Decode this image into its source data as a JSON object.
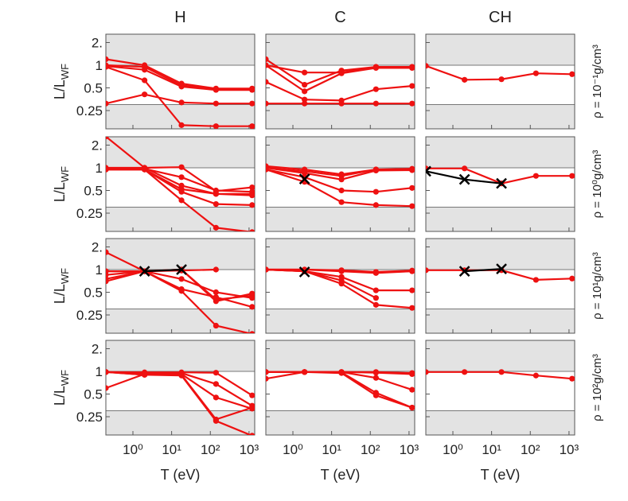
{
  "columns": [
    "H",
    "C",
    "CH"
  ],
  "row_labels": [
    "ρ = 10⁻¹g/cm³",
    "ρ = 10⁰g/cm³",
    "ρ = 10¹g/cm³",
    "ρ = 10²g/cm³"
  ],
  "y_label": "L/L",
  "y_label_sub": "WF",
  "x_label": "T (eV)",
  "axes": {
    "log_x": true,
    "log_y": true,
    "x": [
      0.2,
      2,
      18,
      140,
      1200
    ],
    "xlim": [
      0.2,
      1400
    ],
    "ylim": [
      0.143,
      2.58
    ],
    "xticks": [
      {
        "value": 1,
        "label": "10⁰"
      },
      {
        "value": 10,
        "label": "10¹"
      },
      {
        "value": 100,
        "label": "10²"
      },
      {
        "value": 1000,
        "label": "10³"
      }
    ],
    "yticks": [
      0.25,
      0.5,
      1,
      {
        "value": 2,
        "label": "2."
      }
    ],
    "shade_above": 1,
    "shade_below": 0.3
  },
  "chart_data": [
    {
      "type": "line",
      "series": [
        {
          "color": "#ee1111",
          "marker": "dot",
          "values": [
            1.2,
            1.0,
            0.57,
            0.49,
            0.49
          ]
        },
        {
          "color": "#ee1111",
          "marker": "dot",
          "values": [
            1.0,
            0.95,
            0.54,
            0.48,
            0.48
          ]
        },
        {
          "color": "#ee1111",
          "marker": "dot",
          "values": [
            0.97,
            0.87,
            0.52,
            0.47,
            0.47
          ]
        },
        {
          "color": "#ee1111",
          "marker": "dot",
          "values": [
            0.95,
            0.63,
            0.16,
            0.155,
            0.155
          ]
        },
        {
          "color": "#ee1111",
          "marker": "dot",
          "values": [
            0.31,
            0.41,
            0.32,
            0.31,
            0.31
          ]
        }
      ]
    },
    {
      "type": "line",
      "series": [
        {
          "color": "#ee1111",
          "marker": "dot",
          "values": [
            1.2,
            0.55,
            0.85,
            0.95,
            0.95
          ]
        },
        {
          "color": "#ee1111",
          "marker": "dot",
          "values": [
            1.0,
            0.8,
            0.8,
            0.95,
            0.95
          ]
        },
        {
          "color": "#ee1111",
          "marker": "dot",
          "values": [
            1.0,
            0.45,
            0.78,
            0.92,
            0.92
          ]
        },
        {
          "color": "#ee1111",
          "marker": "dot",
          "values": [
            0.6,
            0.35,
            0.34,
            0.48,
            0.53
          ]
        },
        {
          "color": "#ee1111",
          "marker": "dot",
          "values": [
            0.31,
            0.31,
            0.31,
            0.31,
            0.31
          ]
        }
      ]
    },
    {
      "type": "line",
      "series": [
        {
          "color": "#ee1111",
          "marker": "dot",
          "values": [
            0.98,
            0.64,
            0.65,
            0.78,
            0.76
          ]
        }
      ]
    },
    {
      "type": "line",
      "series": [
        {
          "color": "#ee1111",
          "marker": "dot",
          "values": [
            2.6,
            1.0,
            0.58,
            0.45,
            0.45
          ]
        },
        {
          "color": "#ee1111",
          "marker": "dot",
          "values": [
            1.0,
            1.0,
            1.02,
            0.49,
            0.55
          ]
        },
        {
          "color": "#ee1111",
          "marker": "dot",
          "values": [
            0.97,
            0.97,
            0.75,
            0.5,
            0.48
          ]
        },
        {
          "color": "#ee1111",
          "marker": "dot",
          "values": [
            0.95,
            0.95,
            0.52,
            0.45,
            0.43
          ]
        },
        {
          "color": "#ee1111",
          "marker": "dot",
          "values": [
            0.95,
            0.95,
            0.48,
            0.33,
            0.32
          ]
        },
        {
          "color": "#ee1111",
          "marker": "dot",
          "values": [
            0.95,
            0.95,
            0.37,
            0.16,
            0.14
          ]
        }
      ]
    },
    {
      "type": "line",
      "series": [
        {
          "color": "#ee1111",
          "marker": "dot",
          "values": [
            1.05,
            0.95,
            0.82,
            0.95,
            0.97
          ]
        },
        {
          "color": "#ee1111",
          "marker": "dot",
          "values": [
            1.0,
            0.9,
            0.78,
            0.95,
            0.95
          ]
        },
        {
          "color": "#ee1111",
          "marker": "dot",
          "values": [
            1.0,
            0.85,
            0.7,
            0.92,
            0.93
          ]
        },
        {
          "color": "#ee1111",
          "marker": "dot",
          "values": [
            0.95,
            0.75,
            0.5,
            0.48,
            0.54
          ]
        },
        {
          "color": "#ee1111",
          "marker": "dot",
          "values": [
            0.95,
            0.65,
            0.35,
            0.32,
            0.31
          ]
        },
        {
          "color": "#000000",
          "marker": "cross",
          "values": [
            null,
            0.71,
            null,
            null,
            null
          ]
        }
      ]
    },
    {
      "type": "line",
      "series": [
        {
          "color": "#ee1111",
          "marker": "dot",
          "values": [
            0.98,
            0.98,
            0.62,
            0.78,
            0.78
          ]
        },
        {
          "color": "#000000",
          "marker": "cross",
          "values": [
            0.9,
            0.7,
            0.62,
            null,
            null
          ]
        }
      ]
    },
    {
      "type": "line",
      "series": [
        {
          "color": "#ee1111",
          "marker": "dot",
          "values": [
            1.7,
            0.95,
            1.0,
            0.4,
            0.45
          ]
        },
        {
          "color": "#ee1111",
          "marker": "dot",
          "values": [
            0.95,
            0.95,
            0.97,
            1.0,
            null
          ]
        },
        {
          "color": "#ee1111",
          "marker": "dot",
          "values": [
            0.95,
            0.95,
            1.0,
            0.38,
            0.48
          ]
        },
        {
          "color": "#ee1111",
          "marker": "dot",
          "values": [
            0.85,
            0.95,
            0.75,
            0.5,
            0.42
          ]
        },
        {
          "color": "#ee1111",
          "marker": "dot",
          "values": [
            0.75,
            0.95,
            0.55,
            0.43,
            0.32
          ]
        },
        {
          "color": "#ee1111",
          "marker": "dot",
          "values": [
            0.7,
            0.95,
            0.52,
            0.18,
            0.14
          ]
        },
        {
          "color": "#000000",
          "marker": "cross",
          "values": [
            null,
            0.95,
            1.0,
            null,
            null
          ]
        }
      ]
    },
    {
      "type": "line",
      "series": [
        {
          "color": "#ee1111",
          "marker": "dot",
          "values": [
            1.0,
            1.0,
            0.98,
            0.93,
            0.97
          ]
        },
        {
          "color": "#ee1111",
          "marker": "dot",
          "values": [
            1.0,
            1.0,
            0.95,
            0.9,
            0.95
          ]
        },
        {
          "color": "#ee1111",
          "marker": "dot",
          "values": [
            1.0,
            0.95,
            0.8,
            0.53,
            0.53
          ]
        },
        {
          "color": "#ee1111",
          "marker": "dot",
          "values": [
            1.0,
            0.95,
            0.72,
            0.42,
            null
          ]
        },
        {
          "color": "#ee1111",
          "marker": "dot",
          "values": [
            1.0,
            0.95,
            0.65,
            0.34,
            0.31
          ]
        },
        {
          "color": "#000000",
          "marker": "cross",
          "values": [
            null,
            0.93,
            null,
            null,
            null
          ]
        }
      ]
    },
    {
      "type": "line",
      "series": [
        {
          "color": "#ee1111",
          "marker": "dot",
          "values": [
            0.98,
            0.98,
            0.98,
            0.73,
            0.76
          ]
        },
        {
          "color": "#000000",
          "marker": "cross",
          "values": [
            null,
            0.95,
            1.02,
            null,
            null
          ]
        }
      ]
    },
    {
      "type": "line",
      "series": [
        {
          "color": "#ee1111",
          "marker": "dot",
          "values": [
            0.98,
            0.97,
            0.97,
            0.96,
            0.48
          ]
        },
        {
          "color": "#ee1111",
          "marker": "dot",
          "values": [
            0.98,
            0.95,
            0.95,
            0.68,
            0.35
          ]
        },
        {
          "color": "#ee1111",
          "marker": "dot",
          "values": [
            0.6,
            0.92,
            0.92,
            0.45,
            0.32
          ]
        },
        {
          "color": "#ee1111",
          "marker": "dot",
          "values": [
            0.98,
            0.9,
            0.9,
            0.23,
            0.33
          ]
        },
        {
          "color": "#ee1111",
          "marker": "dot",
          "values": [
            0.98,
            0.9,
            0.88,
            0.22,
            0.14
          ]
        }
      ]
    },
    {
      "type": "line",
      "series": [
        {
          "color": "#ee1111",
          "marker": "dot",
          "values": [
            0.98,
            0.98,
            0.98,
            0.98,
            0.95
          ]
        },
        {
          "color": "#ee1111",
          "marker": "dot",
          "values": [
            0.98,
            0.98,
            0.98,
            0.96,
            0.92
          ]
        },
        {
          "color": "#ee1111",
          "marker": "dot",
          "values": [
            0.8,
            0.98,
            0.98,
            0.82,
            0.57
          ]
        },
        {
          "color": "#ee1111",
          "marker": "dot",
          "values": [
            0.98,
            0.98,
            0.97,
            0.52,
            0.33
          ]
        },
        {
          "color": "#ee1111",
          "marker": "dot",
          "values": [
            0.98,
            0.98,
            0.95,
            0.48,
            0.33
          ]
        }
      ]
    },
    {
      "type": "line",
      "series": [
        {
          "color": "#ee1111",
          "marker": "dot",
          "values": [
            0.98,
            0.98,
            0.98,
            0.88,
            0.8
          ]
        }
      ]
    }
  ]
}
